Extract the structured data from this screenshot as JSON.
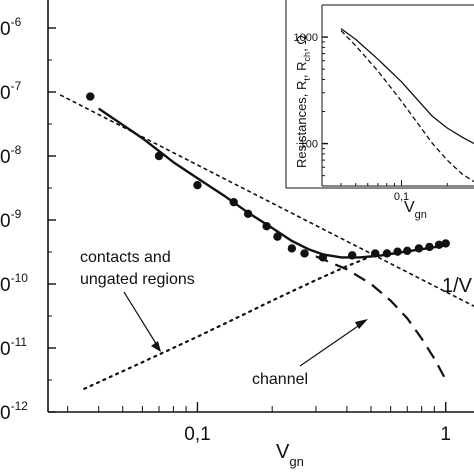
{
  "chart_data": [
    {
      "type": "scatter",
      "xscale": "log",
      "yscale": "log",
      "xlim": [
        0.025,
        1.3
      ],
      "ylim": [
        1e-12,
        1e-06
      ],
      "xlabel": {
        "main": "V",
        "sub": "gn"
      },
      "x_ticks": [
        {
          "value": 0.1,
          "label": "0,1"
        },
        {
          "value": 1,
          "label": "1"
        }
      ],
      "y_ticks": [
        {
          "value": 1e-06,
          "label": "0",
          "sup": "-6"
        },
        {
          "value": 1e-07,
          "label": "0",
          "sup": "-7"
        },
        {
          "value": 1e-08,
          "label": "0",
          "sup": "-8"
        },
        {
          "value": 1e-09,
          "label": "0",
          "sup": "-9"
        },
        {
          "value": 1e-10,
          "label": "0",
          "sup": "-10"
        },
        {
          "value": 1e-11,
          "label": "0",
          "sup": "-11"
        },
        {
          "value": 1e-12,
          "label": "0",
          "sup": "-12"
        }
      ],
      "grid": false,
      "series": [
        {
          "kind": "points",
          "color": "#111111",
          "x": [
            0.037,
            0.07,
            0.1,
            0.14,
            0.16,
            0.19,
            0.21,
            0.24,
            0.27,
            0.32,
            0.42,
            0.52,
            0.58,
            0.64,
            0.7,
            0.78,
            0.86,
            0.94,
            1.0
          ],
          "y": [
            8.5e-08,
            1e-08,
            3.5e-09,
            1.9e-09,
            1.25e-09,
            8e-10,
            5.5e-10,
            3.6e-10,
            3e-10,
            2.6e-10,
            2.8e-10,
            3e-10,
            3e-10,
            3.2e-10,
            3.3e-10,
            3.6e-10,
            3.8e-10,
            4.1e-10,
            4.3e-10
          ]
        },
        {
          "kind": "solid",
          "color": "#111111",
          "x": [
            0.04,
            0.06,
            0.08,
            0.1,
            0.13,
            0.16,
            0.2,
            0.24,
            0.28,
            0.32,
            0.38,
            0.45,
            0.55,
            0.65,
            0.8,
            1.0
          ],
          "y": [
            5.5e-08,
            1.9e-08,
            8e-09,
            4.5e-09,
            2.3e-09,
            1.3e-09,
            7.5e-10,
            4.7e-10,
            3.5e-10,
            2.9e-10,
            2.6e-10,
            2.6e-10,
            2.8e-10,
            3.1e-10,
            3.5e-10,
            4e-10
          ]
        },
        {
          "kind": "short-dash",
          "color": "#111111",
          "x": [
            0.028,
            1.3
          ],
          "y": [
            9e-08,
            4.5e-11
          ]
        },
        {
          "kind": "long-dash",
          "color": "#111111",
          "x": [
            0.3,
            0.4,
            0.5,
            0.6,
            0.7,
            0.8,
            0.9,
            1.0
          ],
          "y": [
            2.7e-10,
            1.7e-10,
            1e-10,
            5.5e-11,
            2.9e-11,
            1.4e-11,
            6.8e-12,
            3.2e-12
          ]
        },
        {
          "kind": "dotted",
          "color": "#111111",
          "x": [
            0.035,
            0.06,
            0.1,
            0.15,
            0.2,
            0.3,
            0.4,
            0.5
          ],
          "y": [
            2.3e-12,
            6e-12,
            1.5e-11,
            3.2e-11,
            5.5e-11,
            1.15e-10,
            1.9e-10,
            2.7e-10
          ]
        }
      ],
      "annotations": [
        "contacts and",
        "ungated regions",
        "channel",
        "1/V"
      ]
    },
    {
      "type": "line",
      "xscale": "log",
      "yscale": "log",
      "xlim": [
        0.03,
        0.3
      ],
      "ylim": [
        40,
        2000
      ],
      "xlabel": {
        "main": "V",
        "sub": "gn"
      },
      "ylabel": "Resistances, Rₜ, Rᶜʰ, Ω",
      "ylabel_parts": {
        "a": "Resistances, R",
        "a_sub": "t",
        "b": ", R",
        "b_sub": "ch",
        "c": ", Ω"
      },
      "x_ticks": [
        {
          "value": 0.1,
          "label": "0,1"
        }
      ],
      "y_ticks": [
        {
          "value": 1000,
          "label": "1000"
        },
        {
          "value": 100,
          "label": "100"
        }
      ],
      "series": [
        {
          "kind": "solid",
          "x": [
            0.04,
            0.05,
            0.07,
            0.1,
            0.13,
            0.16,
            0.2,
            0.25,
            0.3
          ],
          "y": [
            1200,
            950,
            620,
            380,
            250,
            180,
            140,
            115,
            100
          ]
        },
        {
          "kind": "dashed",
          "x": [
            0.04,
            0.05,
            0.07,
            0.1,
            0.13,
            0.16,
            0.2,
            0.25,
            0.3
          ],
          "y": [
            1150,
            830,
            480,
            250,
            150,
            100,
            70,
            52,
            44
          ]
        }
      ]
    }
  ]
}
